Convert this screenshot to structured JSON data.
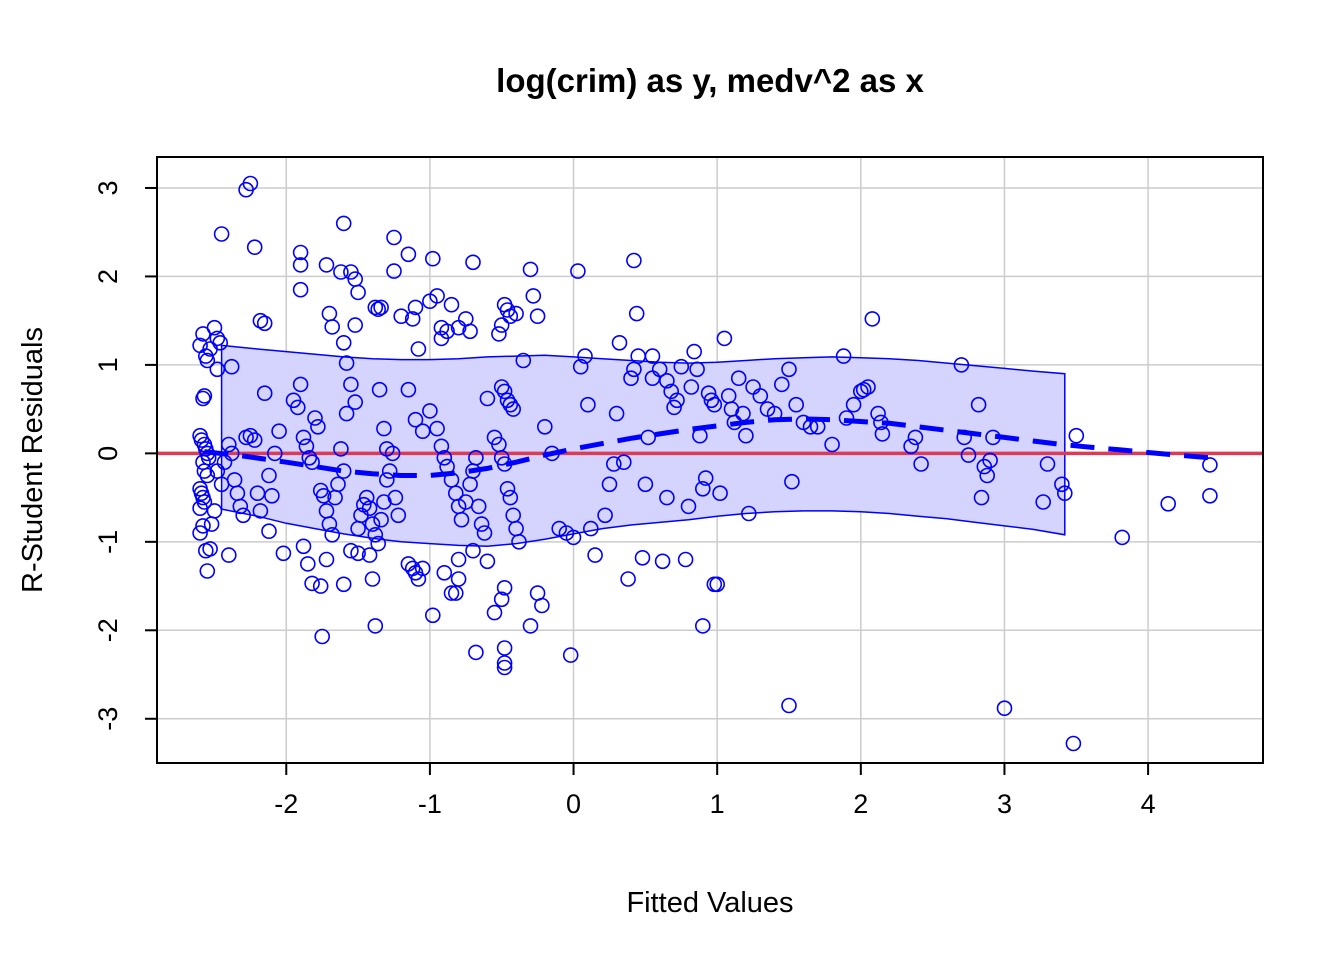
{
  "chart_data": {
    "type": "scatter",
    "title": "log(crim) as y, medv^2 as x",
    "xlabel": "Fitted Values",
    "ylabel": "R-Student Residuals",
    "xlim": [
      -2.9,
      4.8
    ],
    "ylim": [
      -3.5,
      3.35
    ],
    "xticks": [
      -2,
      -1,
      0,
      1,
      2,
      3,
      4
    ],
    "yticks": [
      -3,
      -2,
      -1,
      0,
      1,
      2,
      3
    ],
    "xtick_labels": [
      "-2",
      "-1",
      "0",
      "1",
      "2",
      "3",
      "4"
    ],
    "ytick_labels": [
      "-3",
      "-2",
      "-1",
      "0",
      "1",
      "2",
      "3"
    ],
    "grid": true,
    "colors": {
      "points": "#0000ff",
      "band_fill": "#d4d4ff",
      "band_edge": "#0000ff",
      "smooth": "#0000ff",
      "zero_line": "#dc3b53",
      "grid": "#cccccc"
    },
    "reference_line": {
      "y": 0
    },
    "smooth": {
      "x": [
        -2.57,
        -2.3,
        -2.0,
        -1.8,
        -1.6,
        -1.4,
        -1.2,
        -1.0,
        -0.8,
        -0.6,
        -0.4,
        -0.2,
        0.0,
        0.2,
        0.4,
        0.6,
        0.8,
        1.0,
        1.2,
        1.4,
        1.6,
        1.8,
        2.0,
        2.2,
        2.4,
        2.6,
        2.8,
        3.0,
        3.2,
        3.4,
        3.6,
        3.8,
        4.0,
        4.2,
        4.43
      ],
      "y": [
        0.02,
        -0.03,
        -0.1,
        -0.15,
        -0.2,
        -0.23,
        -0.25,
        -0.25,
        -0.22,
        -0.17,
        -0.1,
        -0.02,
        0.05,
        0.11,
        0.17,
        0.22,
        0.27,
        0.31,
        0.35,
        0.38,
        0.39,
        0.38,
        0.36,
        0.34,
        0.3,
        0.26,
        0.22,
        0.18,
        0.14,
        0.1,
        0.07,
        0.04,
        0.01,
        -0.02,
        -0.05
      ]
    },
    "band": {
      "x": [
        -2.45,
        -2.2,
        -2.0,
        -1.8,
        -1.6,
        -1.4,
        -1.2,
        -1.0,
        -0.8,
        -0.6,
        -0.4,
        -0.2,
        0.0,
        0.2,
        0.4,
        0.6,
        0.8,
        1.0,
        1.2,
        1.4,
        1.6,
        1.8,
        2.0,
        2.2,
        2.4,
        2.6,
        2.8,
        3.0,
        3.2,
        3.42
      ],
      "upper": [
        1.22,
        1.18,
        1.15,
        1.12,
        1.09,
        1.07,
        1.06,
        1.06,
        1.07,
        1.09,
        1.1,
        1.11,
        1.09,
        1.07,
        1.05,
        1.03,
        1.02,
        1.03,
        1.05,
        1.07,
        1.08,
        1.09,
        1.08,
        1.07,
        1.05,
        1.02,
        0.99,
        0.96,
        0.93,
        0.9
      ],
      "lower": [
        -0.63,
        -0.71,
        -0.79,
        -0.85,
        -0.91,
        -0.96,
        -1.0,
        -1.02,
        -1.04,
        -1.05,
        -1.02,
        -0.97,
        -0.91,
        -0.85,
        -0.81,
        -0.78,
        -0.75,
        -0.71,
        -0.68,
        -0.66,
        -0.65,
        -0.65,
        -0.66,
        -0.68,
        -0.71,
        -0.74,
        -0.78,
        -0.82,
        -0.86,
        -0.92
      ]
    },
    "points": [
      [
        -2.6,
        1.22
      ],
      [
        -2.58,
        1.35
      ],
      [
        -2.56,
        1.1
      ],
      [
        -2.55,
        1.05
      ],
      [
        -2.53,
        1.18
      ],
      [
        -2.5,
        1.42
      ],
      [
        -2.48,
        1.3
      ],
      [
        -2.46,
        1.25
      ],
      [
        -2.48,
        0.95
      ],
      [
        -2.57,
        0.65
      ],
      [
        -2.58,
        0.62
      ],
      [
        -2.6,
        0.2
      ],
      [
        -2.59,
        0.15
      ],
      [
        -2.57,
        0.1
      ],
      [
        -2.56,
        0.05
      ],
      [
        -2.55,
        0.0
      ],
      [
        -2.54,
        -0.05
      ],
      [
        -2.58,
        -0.1
      ],
      [
        -2.57,
        -0.2
      ],
      [
        -2.55,
        -0.25
      ],
      [
        -2.6,
        -0.4
      ],
      [
        -2.59,
        -0.45
      ],
      [
        -2.58,
        -0.5
      ],
      [
        -2.57,
        -0.55
      ],
      [
        -2.6,
        -0.62
      ],
      [
        -2.58,
        -0.82
      ],
      [
        -2.52,
        -0.8
      ],
      [
        -2.5,
        -0.65
      ],
      [
        -2.56,
        -1.1
      ],
      [
        -2.53,
        -1.08
      ],
      [
        -2.55,
        -1.33
      ],
      [
        -2.6,
        -0.9
      ],
      [
        -2.48,
        -0.2
      ],
      [
        -2.45,
        -0.35
      ],
      [
        -2.43,
        -0.1
      ],
      [
        -2.4,
        0.1
      ],
      [
        -2.38,
        0.0
      ],
      [
        -2.36,
        -0.3
      ],
      [
        -2.34,
        -0.45
      ],
      [
        -2.32,
        -0.6
      ],
      [
        -2.3,
        -0.7
      ],
      [
        -2.28,
        0.18
      ],
      [
        -2.25,
        0.2
      ],
      [
        -2.22,
        0.15
      ],
      [
        -2.2,
        -0.45
      ],
      [
        -2.18,
        -0.65
      ],
      [
        -2.12,
        -0.25
      ],
      [
        -2.1,
        -0.48
      ],
      [
        -2.08,
        0.0
      ],
      [
        -2.05,
        0.25
      ],
      [
        -2.38,
        0.98
      ],
      [
        -2.45,
        2.48
      ],
      [
        -2.22,
        2.33
      ],
      [
        -2.28,
        2.98
      ],
      [
        -2.25,
        3.05
      ],
      [
        -2.18,
        1.5
      ],
      [
        -2.15,
        1.47
      ],
      [
        -2.15,
        0.68
      ],
      [
        -2.12,
        -0.88
      ],
      [
        -2.4,
        -1.15
      ],
      [
        -2.02,
        -1.13
      ],
      [
        -1.95,
        0.6
      ],
      [
        -1.92,
        0.52
      ],
      [
        -1.9,
        0.78
      ],
      [
        -1.88,
        0.18
      ],
      [
        -1.86,
        0.08
      ],
      [
        -1.84,
        -0.05
      ],
      [
        -1.82,
        -0.1
      ],
      [
        -1.8,
        0.4
      ],
      [
        -1.78,
        0.3
      ],
      [
        -1.76,
        -0.42
      ],
      [
        -1.74,
        -0.48
      ],
      [
        -1.72,
        -0.65
      ],
      [
        -1.7,
        -0.8
      ],
      [
        -1.68,
        -0.92
      ],
      [
        -1.66,
        -0.5
      ],
      [
        -1.64,
        -0.35
      ],
      [
        -1.62,
        0.05
      ],
      [
        -1.6,
        -0.2
      ],
      [
        -1.58,
        0.45
      ],
      [
        -1.9,
        2.27
      ],
      [
        -1.9,
        2.13
      ],
      [
        -1.9,
        1.85
      ],
      [
        -1.72,
        2.13
      ],
      [
        -1.62,
        2.05
      ],
      [
        -1.6,
        2.6
      ],
      [
        -1.55,
        2.05
      ],
      [
        -1.52,
        1.97
      ],
      [
        -1.5,
        1.82
      ],
      [
        -1.52,
        1.45
      ],
      [
        -1.7,
        1.58
      ],
      [
        -1.68,
        1.43
      ],
      [
        -1.6,
        1.25
      ],
      [
        -1.58,
        1.02
      ],
      [
        -1.55,
        0.78
      ],
      [
        -1.52,
        0.58
      ],
      [
        -1.88,
        -1.05
      ],
      [
        -1.85,
        -1.25
      ],
      [
        -1.82,
        -1.47
      ],
      [
        -1.76,
        -1.5
      ],
      [
        -1.75,
        -2.07
      ],
      [
        -1.72,
        -1.2
      ],
      [
        -1.6,
        -1.48
      ],
      [
        -1.55,
        -1.1
      ],
      [
        -1.5,
        -1.13
      ],
      [
        -1.5,
        -0.85
      ],
      [
        -1.48,
        -0.7
      ],
      [
        -1.46,
        -0.58
      ],
      [
        -1.44,
        -0.5
      ],
      [
        -1.42,
        -0.62
      ],
      [
        -1.4,
        -0.8
      ],
      [
        -1.38,
        -0.92
      ],
      [
        -1.36,
        -1.02
      ],
      [
        -1.34,
        -0.75
      ],
      [
        -1.32,
        -0.55
      ],
      [
        -1.3,
        -0.3
      ],
      [
        -1.28,
        -0.2
      ],
      [
        -1.26,
        0.0
      ],
      [
        -1.24,
        -0.5
      ],
      [
        -1.22,
        -0.7
      ],
      [
        -1.38,
        1.65
      ],
      [
        -1.36,
        1.63
      ],
      [
        -1.34,
        1.65
      ],
      [
        -1.25,
        2.44
      ],
      [
        -1.25,
        2.06
      ],
      [
        -1.2,
        1.55
      ],
      [
        -1.15,
        2.25
      ],
      [
        -1.12,
        1.52
      ],
      [
        -1.1,
        1.65
      ],
      [
        -1.08,
        1.18
      ],
      [
        -1.0,
        1.72
      ],
      [
        -0.95,
        1.78
      ],
      [
        -0.92,
        1.42
      ],
      [
        -0.92,
        1.3
      ],
      [
        -0.88,
        1.38
      ],
      [
        -0.85,
        1.68
      ],
      [
        -0.8,
        1.42
      ],
      [
        -0.75,
        1.52
      ],
      [
        -0.72,
        1.38
      ],
      [
        -0.7,
        2.16
      ],
      [
        -0.98,
        2.2
      ],
      [
        -1.15,
        0.72
      ],
      [
        -1.1,
        0.38
      ],
      [
        -1.05,
        0.25
      ],
      [
        -1.0,
        0.48
      ],
      [
        -0.95,
        0.28
      ],
      [
        -0.92,
        0.08
      ],
      [
        -0.9,
        -0.05
      ],
      [
        -0.88,
        -0.15
      ],
      [
        -0.85,
        -0.3
      ],
      [
        -0.82,
        -0.45
      ],
      [
        -0.8,
        -0.6
      ],
      [
        -0.78,
        -0.75
      ],
      [
        -0.75,
        -0.55
      ],
      [
        -0.72,
        -0.35
      ],
      [
        -0.7,
        -0.2
      ],
      [
        -0.68,
        -0.05
      ],
      [
        -0.66,
        -0.6
      ],
      [
        -0.64,
        -0.8
      ],
      [
        -0.62,
        -0.9
      ],
      [
        -1.15,
        -1.25
      ],
      [
        -1.12,
        -1.3
      ],
      [
        -1.1,
        -1.35
      ],
      [
        -1.05,
        -1.3
      ],
      [
        -1.08,
        -1.42
      ],
      [
        -0.98,
        -1.83
      ],
      [
        -0.9,
        -1.35
      ],
      [
        -0.85,
        -1.58
      ],
      [
        -0.82,
        -1.58
      ],
      [
        -0.8,
        -1.42
      ],
      [
        -0.8,
        -1.2
      ],
      [
        -0.7,
        -1.1
      ],
      [
        -0.68,
        -2.25
      ],
      [
        -0.6,
        -1.22
      ],
      [
        -0.55,
        -1.8
      ],
      [
        -0.5,
        -1.65
      ],
      [
        -0.48,
        -1.52
      ],
      [
        -0.48,
        -2.2
      ],
      [
        -0.48,
        -2.37
      ],
      [
        -0.48,
        -2.42
      ],
      [
        -0.3,
        -1.95
      ],
      [
        -0.25,
        -1.58
      ],
      [
        -0.22,
        -1.72
      ],
      [
        -0.02,
        -2.28
      ],
      [
        -1.38,
        -1.95
      ],
      [
        -1.42,
        -1.15
      ],
      [
        -1.4,
        -1.42
      ],
      [
        -1.35,
        0.72
      ],
      [
        -1.32,
        0.28
      ],
      [
        -1.3,
        0.05
      ],
      [
        -0.6,
        0.62
      ],
      [
        -0.55,
        0.18
      ],
      [
        -0.52,
        0.1
      ],
      [
        -0.5,
        -0.05
      ],
      [
        -0.48,
        -0.12
      ],
      [
        -0.46,
        -0.4
      ],
      [
        -0.44,
        -0.5
      ],
      [
        -0.42,
        -0.7
      ],
      [
        -0.4,
        -0.85
      ],
      [
        -0.38,
        -1.0
      ],
      [
        -0.48,
        1.68
      ],
      [
        -0.46,
        1.62
      ],
      [
        -0.44,
        1.55
      ],
      [
        -0.5,
        1.45
      ],
      [
        -0.52,
        1.35
      ],
      [
        -0.4,
        1.58
      ],
      [
        -0.35,
        1.05
      ],
      [
        -0.3,
        2.08
      ],
      [
        -0.28,
        1.78
      ],
      [
        -0.25,
        1.55
      ],
      [
        -0.5,
        0.75
      ],
      [
        -0.48,
        0.7
      ],
      [
        -0.46,
        0.6
      ],
      [
        -0.44,
        0.55
      ],
      [
        -0.42,
        0.5
      ],
      [
        -0.2,
        0.3
      ],
      [
        -0.15,
        0.0
      ],
      [
        -0.1,
        -0.85
      ],
      [
        -0.05,
        -0.9
      ],
      [
        0.0,
        -0.95
      ],
      [
        0.03,
        2.06
      ],
      [
        0.05,
        0.98
      ],
      [
        0.08,
        1.1
      ],
      [
        0.1,
        0.55
      ],
      [
        0.12,
        -0.85
      ],
      [
        0.15,
        -1.15
      ],
      [
        0.22,
        -0.7
      ],
      [
        0.25,
        -0.35
      ],
      [
        0.28,
        -0.12
      ],
      [
        0.3,
        0.45
      ],
      [
        0.32,
        1.25
      ],
      [
        0.35,
        -0.1
      ],
      [
        0.38,
        -1.42
      ],
      [
        0.4,
        0.85
      ],
      [
        0.42,
        0.95
      ],
      [
        0.42,
        2.18
      ],
      [
        0.44,
        1.58
      ],
      [
        0.45,
        1.1
      ],
      [
        0.48,
        -1.18
      ],
      [
        0.5,
        -0.35
      ],
      [
        0.52,
        0.18
      ],
      [
        0.55,
        1.1
      ],
      [
        0.6,
        0.95
      ],
      [
        0.62,
        -1.22
      ],
      [
        0.65,
        -0.5
      ],
      [
        0.68,
        0.7
      ],
      [
        0.72,
        0.6
      ],
      [
        0.75,
        0.98
      ],
      [
        0.78,
        -1.2
      ],
      [
        0.8,
        -0.6
      ],
      [
        0.82,
        0.75
      ],
      [
        0.84,
        1.15
      ],
      [
        0.86,
        0.95
      ],
      [
        0.88,
        0.2
      ],
      [
        0.9,
        -0.4
      ],
      [
        0.92,
        -0.28
      ],
      [
        0.94,
        0.68
      ],
      [
        0.96,
        0.6
      ],
      [
        0.98,
        0.55
      ],
      [
        1.0,
        -1.48
      ],
      [
        1.02,
        -0.45
      ],
      [
        1.05,
        1.3
      ],
      [
        1.08,
        0.65
      ],
      [
        1.1,
        0.5
      ],
      [
        1.12,
        0.35
      ],
      [
        1.15,
        0.85
      ],
      [
        1.18,
        0.45
      ],
      [
        1.2,
        0.2
      ],
      [
        1.22,
        -0.68
      ],
      [
        1.25,
        0.75
      ],
      [
        1.3,
        0.65
      ],
      [
        1.35,
        0.5
      ],
      [
        1.4,
        0.45
      ],
      [
        1.45,
        0.78
      ],
      [
        1.5,
        0.95
      ],
      [
        1.52,
        -0.32
      ],
      [
        1.55,
        0.55
      ],
      [
        1.6,
        0.35
      ],
      [
        1.65,
        0.3
      ],
      [
        1.7,
        0.3
      ],
      [
        1.8,
        0.1
      ],
      [
        1.88,
        1.1
      ],
      [
        1.9,
        0.4
      ],
      [
        1.95,
        0.55
      ],
      [
        2.0,
        0.7
      ],
      [
        2.02,
        0.72
      ],
      [
        2.05,
        0.75
      ],
      [
        2.08,
        1.52
      ],
      [
        2.12,
        0.45
      ],
      [
        2.14,
        0.35
      ],
      [
        2.15,
        0.22
      ],
      [
        2.35,
        0.08
      ],
      [
        2.38,
        0.18
      ],
      [
        2.42,
        -0.12
      ],
      [
        2.7,
        1.0
      ],
      [
        2.72,
        0.18
      ],
      [
        2.75,
        -0.02
      ],
      [
        2.82,
        0.55
      ],
      [
        2.84,
        -0.5
      ],
      [
        2.86,
        -0.15
      ],
      [
        2.88,
        -0.25
      ],
      [
        2.9,
        -0.08
      ],
      [
        2.92,
        0.18
      ],
      [
        3.27,
        -0.55
      ],
      [
        3.3,
        -0.12
      ],
      [
        3.4,
        -0.35
      ],
      [
        3.42,
        -0.45
      ],
      [
        3.5,
        0.2
      ],
      [
        3.82,
        -0.95
      ],
      [
        4.14,
        -0.57
      ],
      [
        4.43,
        -0.48
      ],
      [
        4.43,
        -0.13
      ],
      [
        1.5,
        -2.85
      ],
      [
        3.0,
        -2.88
      ],
      [
        3.48,
        -3.28
      ],
      [
        0.98,
        -1.48
      ],
      [
        0.9,
        -1.95
      ],
      [
        0.55,
        0.85
      ],
      [
        0.65,
        0.82
      ],
      [
        0.7,
        0.52
      ]
    ]
  }
}
